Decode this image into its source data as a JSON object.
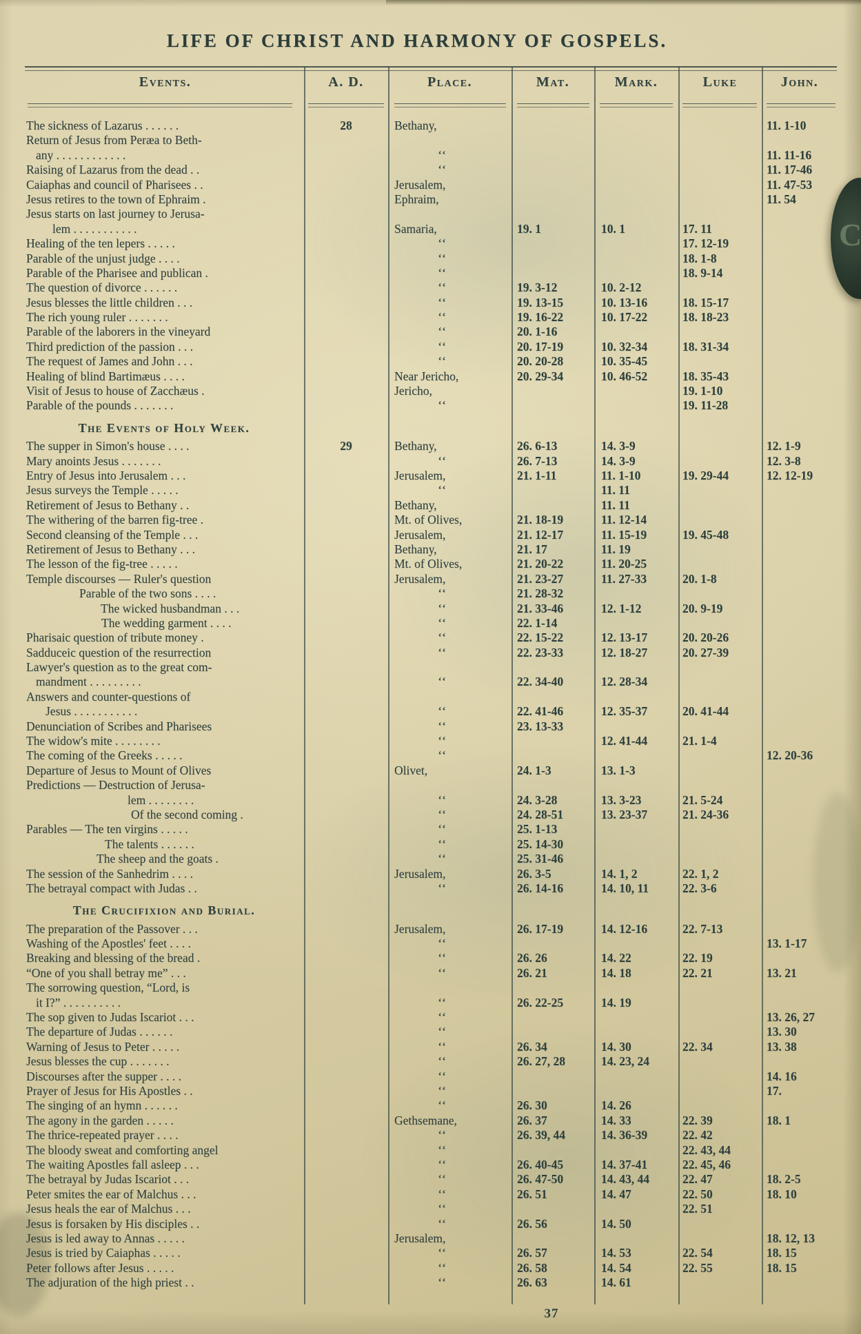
{
  "page": {
    "title": "LIFE OF CHRIST AND HARMONY OF GOSPELS.",
    "page_number": "37",
    "thumb_tab_letter": "C"
  },
  "colors": {
    "paper": "#d9cfa8",
    "ink": "#2e403d",
    "tab": "#2b3a2e"
  },
  "table": {
    "headers": [
      "Events.",
      "A. D.",
      "Place.",
      "Mat.",
      "Mark.",
      "Luke",
      "John."
    ],
    "ditto_mark": "‘‘",
    "rows": [
      {
        "t": "The sickness of Lazarus . . . . . .",
        "a": "28",
        "p": "Bethany,",
        "j": "11. 1-10"
      },
      {
        "t": "Return of Jesus from Peræa to Beth-"
      },
      {
        "t": "any . . . . . . . . . . . .",
        "i": 14,
        "p": "‘‘",
        "j": "11. 11-16"
      },
      {
        "t": "Raising of Lazarus from the dead . .",
        "p": "‘‘",
        "j": "11. 17-46"
      },
      {
        "t": "Caiaphas and council of Pharisees . .",
        "p": "Jerusalem,",
        "j": "11. 47-53"
      },
      {
        "t": "Jesus retires to the town of Ephraim .",
        "p": "Ephraim,",
        "j": "11. 54"
      },
      {
        "t": "Jesus starts on last journey to Jerusa-"
      },
      {
        "t": "lem . . . . . . . . . . .",
        "i": 38,
        "p": "Samaria,",
        "m": "19. 1",
        "k": "10. 1",
        "l": "17. 11"
      },
      {
        "t": "Healing of the ten lepers . . . . .",
        "p": "‘‘",
        "l": "17. 12-19"
      },
      {
        "t": "Parable of the unjust judge . . . .",
        "p": "‘‘",
        "l": "18. 1-8"
      },
      {
        "t": "Parable of the Pharisee and publican .",
        "p": "‘‘",
        "l": "18. 9-14"
      },
      {
        "t": "The question of divorce . . . . . .",
        "p": "‘‘",
        "m": "19. 3-12",
        "k": "10. 2-12"
      },
      {
        "t": "Jesus blesses the little children . . .",
        "p": "‘‘",
        "m": "19. 13-15",
        "k": "10. 13-16",
        "l": "18. 15-17"
      },
      {
        "t": "The rich young ruler . . . . . . .",
        "p": "‘‘",
        "m": "19. 16-22",
        "k": "10. 17-22",
        "l": "18. 18-23"
      },
      {
        "t": "Parable of the laborers in the vineyard",
        "p": "‘‘",
        "m": "20. 1-16"
      },
      {
        "t": "Third prediction of the passion . . .",
        "p": "‘‘",
        "m": "20. 17-19",
        "k": "10. 32-34",
        "l": "18. 31-34"
      },
      {
        "t": "The request of James and John . . .",
        "p": "‘‘",
        "m": "20. 20-28",
        "k": "10. 35-45"
      },
      {
        "t": "Healing of blind Bartimæus . . . .",
        "p": "Near Jericho,",
        "m": "20. 29-34",
        "k": "10. 46-52",
        "l": "18. 35-43"
      },
      {
        "t": "Visit of Jesus to house of Zacchæus .",
        "p": "Jericho,",
        "l": "19. 1-10"
      },
      {
        "t": "Parable of the pounds . . . . . . .",
        "p": "‘‘",
        "l": "19. 11-28"
      },
      {
        "y": "s",
        "h": 11
      },
      {
        "y": "h",
        "t": "The Events of Holy Week."
      },
      {
        "y": "s",
        "h": 5
      },
      {
        "t": "The supper in Simon's house . . . .",
        "a": "29",
        "p": "Bethany,",
        "m": "26. 6-13",
        "k": "14. 3-9",
        "j": "12. 1-9"
      },
      {
        "t": "Mary anoints Jesus . . . . . . .",
        "p": "‘‘",
        "m": "26. 7-13",
        "k": "14. 3-9",
        "j": "12. 3-8"
      },
      {
        "t": "Entry of Jesus into Jerusalem . . .",
        "p": "Jerusalem,",
        "m": "21. 1-11",
        "k": "11. 1-10",
        "l": "19. 29-44",
        "j": "12. 12-19"
      },
      {
        "t": "Jesus surveys the Temple . . . . .",
        "p": "‘‘",
        "k": "11. 11"
      },
      {
        "t": "Retirement of Jesus to Bethany . .",
        "p": "Bethany,",
        "k": "11. 11"
      },
      {
        "t": "The withering of the barren fig-tree .",
        "p": "Mt. of Olives,",
        "m": "21. 18-19",
        "k": "11. 12-14"
      },
      {
        "t": "Second cleansing of the Temple . . .",
        "p": "Jerusalem,",
        "m": "21. 12-17",
        "k": "11. 15-19",
        "l": "19. 45-48"
      },
      {
        "t": "Retirement of Jesus to Bethany . . .",
        "p": "Bethany,",
        "m": "21. 17",
        "k": "11. 19"
      },
      {
        "t": "The lesson of the fig-tree . . . . .",
        "p": "Mt. of Olives,",
        "m": "21. 20-22",
        "k": "11. 20-25"
      },
      {
        "t": "Temple discourses — Ruler's question",
        "p": "Jerusalem,",
        "m": "21. 23-27",
        "k": "11. 27-33",
        "l": "20. 1-8"
      },
      {
        "t": "Parable of the two sons . . . .",
        "i": 77,
        "p": "‘‘",
        "m": "21. 28-32"
      },
      {
        "t": "The wicked husbandman . . .",
        "i": 108,
        "p": "‘‘",
        "m": "21. 33-46",
        "k": "12. 1-12",
        "l": "20. 9-19"
      },
      {
        "t": "The wedding garment . . . .",
        "i": 109,
        "p": "‘‘",
        "m": "22. 1-14"
      },
      {
        "t": "Pharisaic question of tribute money .",
        "p": "‘‘",
        "m": "22. 15-22",
        "k": "12. 13-17",
        "l": "20. 20-26"
      },
      {
        "t": "Sadduceic question of the resurrection",
        "p": "‘‘",
        "m": "22. 23-33",
        "k": "12. 18-27",
        "l": "20. 27-39"
      },
      {
        "t": "Lawyer's question as to the great com-"
      },
      {
        "t": "mandment . . . . . . . . .",
        "i": 14,
        "p": "‘‘",
        "m": "22. 34-40",
        "k": "12. 28-34"
      },
      {
        "t": "Answers and counter-questions of"
      },
      {
        "t": "Jesus . . . . . . . . . . .",
        "i": 28,
        "p": "‘‘",
        "m": "22. 41-46",
        "k": "12. 35-37",
        "l": "20. 41-44"
      },
      {
        "t": "Denunciation of Scribes and Pharisees",
        "p": "‘‘",
        "m": "23. 13-33"
      },
      {
        "t": "The widow's mite . . . . . . . .",
        "p": "‘‘",
        "k": "12. 41-44",
        "l": "21. 1-4"
      },
      {
        "t": "The coming of the Greeks . . . . .",
        "p": "‘‘",
        "j": "12. 20-36"
      },
      {
        "t": "Departure of Jesus to Mount of Olives",
        "p": "Olivet,",
        "m": "24. 1-3",
        "k": "13. 1-3"
      },
      {
        "t": "Predictions — Destruction of Jerusa-"
      },
      {
        "t": "lem . . . . . . . .",
        "i": 147,
        "p": "‘‘",
        "m": "24. 3-28",
        "k": "13. 3-23",
        "l": "21. 5-24"
      },
      {
        "t": "Of the second coming .",
        "i": 152,
        "p": "‘‘",
        "m": "24. 28-51",
        "k": "13. 23-37",
        "l": "21. 24-36"
      },
      {
        "t": "Parables — The ten virgins . . . . .",
        "p": "‘‘",
        "m": "25. 1-13"
      },
      {
        "t": "The talents . . . . . .",
        "i": 114,
        "p": "‘‘",
        "m": "25. 14-30"
      },
      {
        "t": "The sheep and the goats .",
        "i": 102,
        "p": "‘‘",
        "m": "25. 31-46"
      },
      {
        "t": "The session of the Sanhedrim . . . .",
        "p": "Jerusalem,",
        "m": "26. 3-5",
        "k": "14. 1, 2",
        "l": "22. 1, 2"
      },
      {
        "t": "The betrayal compact with Judas . .",
        "p": "‘‘",
        "m": "26. 14-16",
        "k": "14. 10, 11",
        "l": "22. 3-6"
      },
      {
        "y": "s",
        "h": 11
      },
      {
        "y": "h",
        "t": "The Crucifixion and Burial."
      },
      {
        "y": "s",
        "h": 5
      },
      {
        "t": "The preparation of the Passover . . .",
        "p": "Jerusalem,",
        "m": "26. 17-19",
        "k": "14. 12-16",
        "l": "22. 7-13"
      },
      {
        "t": "Washing of the Apostles' feet . . . .",
        "p": "‘‘",
        "j": "13. 1-17"
      },
      {
        "t": "Breaking and blessing of the bread .",
        "p": "‘‘",
        "m": "26. 26",
        "k": "14. 22",
        "l": "22. 19"
      },
      {
        "t": "“One of you shall betray me” . . .",
        "p": "‘‘",
        "m": "26. 21",
        "k": "14. 18",
        "l": "22. 21",
        "j": "13. 21"
      },
      {
        "t": "The sorrowing question, “Lord, is"
      },
      {
        "t": "it I?” . . . . . . . . . .",
        "i": 14,
        "p": "‘‘",
        "m": "26. 22-25",
        "k": "14. 19"
      },
      {
        "t": "The sop given to Judas Iscariot . . .",
        "p": "‘‘",
        "j": "13. 26, 27"
      },
      {
        "t": "The departure of Judas . . . . . .",
        "p": "‘‘",
        "j": "13. 30"
      },
      {
        "t": "Warning of Jesus to Peter . . . . .",
        "p": "‘‘",
        "m": "26. 34",
        "k": "14. 30",
        "l": "22. 34",
        "j": "13. 38"
      },
      {
        "t": "Jesus blesses the cup . . . . . . .",
        "p": "‘‘",
        "m": "26. 27, 28",
        "k": "14. 23, 24"
      },
      {
        "t": "Discourses after the supper . . . .",
        "p": "‘‘",
        "j": "14. 16"
      },
      {
        "t": "Prayer of Jesus for His Apostles . .",
        "p": "‘‘",
        "j": "17."
      },
      {
        "t": "The singing of an hymn . . . . . .",
        "p": "‘‘",
        "m": "26. 30",
        "k": "14. 26"
      },
      {
        "t": "The agony in the garden . . . . .",
        "p": "Gethsemane,",
        "m": "26. 37",
        "k": "14. 33",
        "l": "22. 39",
        "j": "18. 1"
      },
      {
        "t": "The thrice-repeated prayer . . . .",
        "p": "‘‘",
        "m": "26. 39, 44",
        "k": "14. 36-39",
        "l": "22. 42"
      },
      {
        "t": "The bloody sweat and comforting angel",
        "p": "‘‘",
        "l": "22. 43, 44"
      },
      {
        "t": "The waiting Apostles fall asleep . . .",
        "p": "‘‘",
        "m": "26. 40-45",
        "k": "14. 37-41",
        "l": "22. 45, 46"
      },
      {
        "t": "The betrayal by Judas Iscariot . . .",
        "p": "‘‘",
        "m": "26. 47-50",
        "k": "14. 43, 44",
        "l": "22. 47",
        "j": "18. 2-5"
      },
      {
        "t": "Peter smites the ear of Malchus . . .",
        "p": "‘‘",
        "m": "26. 51",
        "k": "14. 47",
        "l": "22. 50",
        "j": "18. 10"
      },
      {
        "t": "Jesus heals the ear of Malchus . . .",
        "p": "‘‘",
        "l": "22. 51"
      },
      {
        "t": "Jesus is forsaken by His disciples . .",
        "p": "‘‘",
        "m": "26. 56",
        "k": "14. 50"
      },
      {
        "t": "Jesus is led away to Annas . . . . .",
        "p": "Jerusalem,",
        "j": "18. 12, 13"
      },
      {
        "t": "Jesus is tried by Caiaphas . . . . .",
        "p": "‘‘",
        "m": "26. 57",
        "k": "14. 53",
        "l": "22. 54",
        "j": "18. 15"
      },
      {
        "t": "Peter follows after Jesus . . . . .",
        "p": "‘‘",
        "m": "26. 58",
        "k": "14. 54",
        "l": "22. 55",
        "j": "18. 15"
      },
      {
        "t": "The adjuration of the high priest . .",
        "p": "‘‘",
        "m": "26. 63",
        "k": "14. 61"
      }
    ]
  }
}
